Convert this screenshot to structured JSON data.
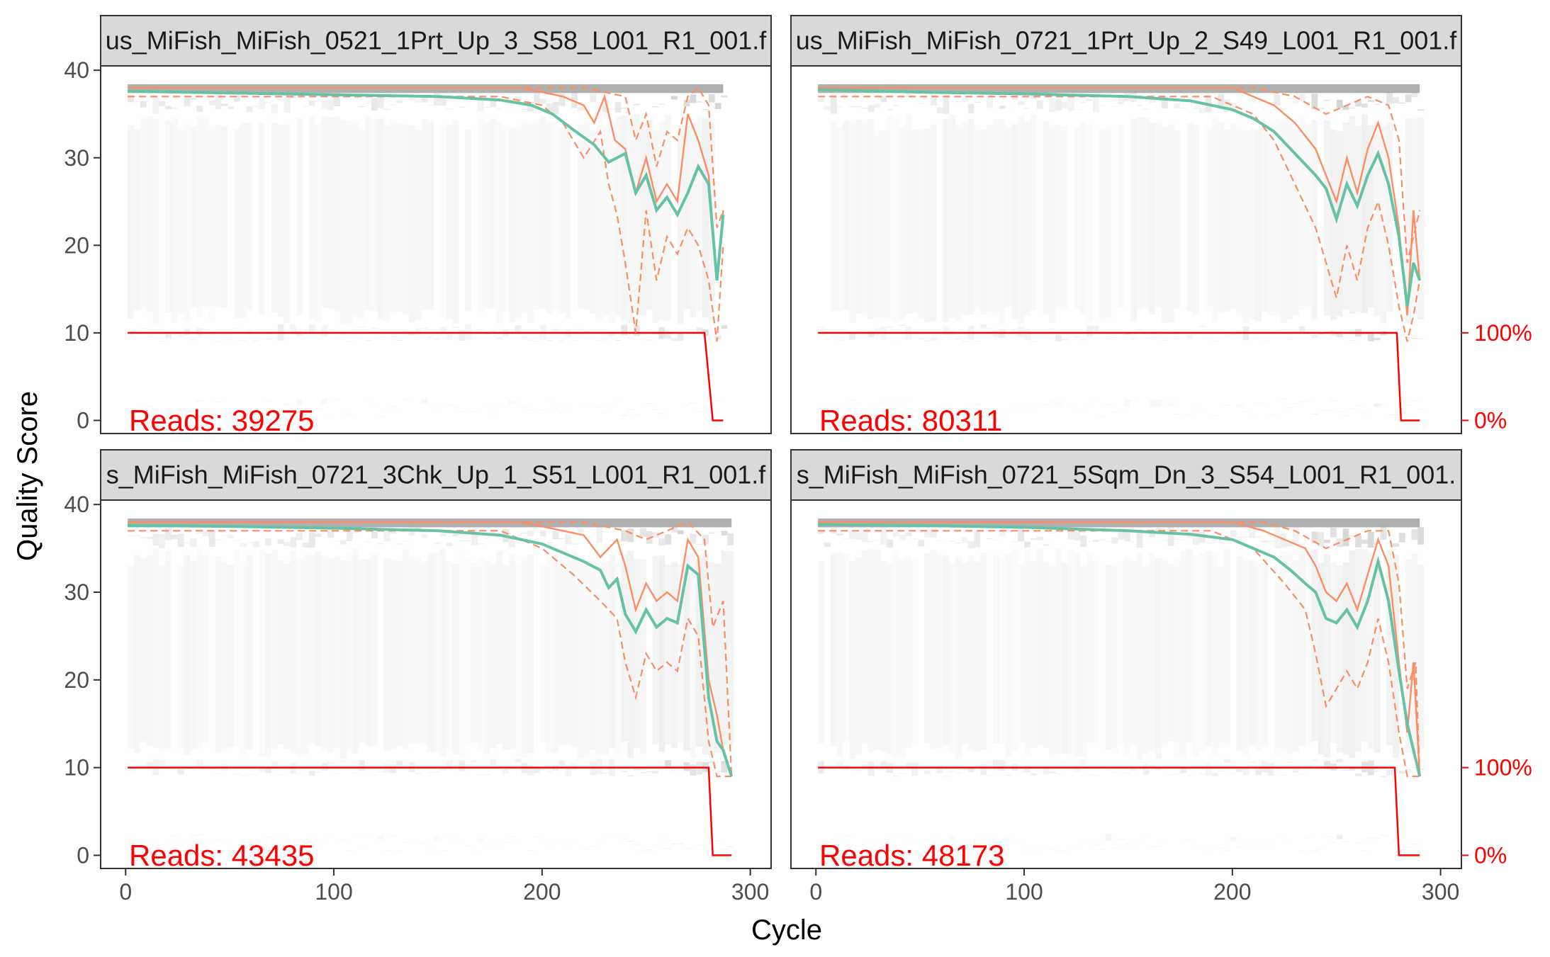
{
  "chart_data": {
    "type": "line",
    "xlabel": "Cycle",
    "ylabel": "Quality Score",
    "xlim": [
      -12,
      310
    ],
    "ylim": [
      -1.5,
      40.5
    ],
    "x_ticks": [
      0,
      100,
      200,
      300
    ],
    "y_ticks": [
      0,
      10,
      20,
      30,
      40
    ],
    "right_axis_labels": [
      "100%",
      "0%"
    ],
    "grid": false,
    "colors": {
      "mean": "#66c2a5",
      "quantiles": "#fc8d62",
      "reads": "#ff0000",
      "heatmap": "#bdbdbd",
      "strip": "#d9d9d9"
    },
    "panels": [
      {
        "strip_label": "us_MiFish_MiFish_0521_1Prt_Up_3_S58_L001_R1_001.f",
        "reads_label": "Reads:  39275",
        "read_length": 287,
        "mean": [
          [
            1,
            37.6
          ],
          [
            50,
            37.4
          ],
          [
            100,
            37.2
          ],
          [
            150,
            37.0
          ],
          [
            180,
            36.6
          ],
          [
            195,
            36.0
          ],
          [
            205,
            35.0
          ],
          [
            215,
            33.2
          ],
          [
            225,
            31.5
          ],
          [
            232,
            29.5
          ],
          [
            240,
            30.5
          ],
          [
            245,
            26.0
          ],
          [
            250,
            28.0
          ],
          [
            255,
            24.0
          ],
          [
            260,
            25.5
          ],
          [
            265,
            23.5
          ],
          [
            270,
            26.0
          ],
          [
            275,
            29.0
          ],
          [
            280,
            27.0
          ],
          [
            284,
            16.0
          ],
          [
            287,
            23.5
          ]
        ],
        "median": [
          [
            1,
            38.0
          ],
          [
            190,
            38.0
          ],
          [
            200,
            37.5
          ],
          [
            210,
            37.0
          ],
          [
            220,
            36.0
          ],
          [
            225,
            34.0
          ],
          [
            230,
            37.0
          ],
          [
            235,
            32.0
          ],
          [
            240,
            31.0
          ],
          [
            245,
            26.0
          ],
          [
            250,
            30.0
          ],
          [
            255,
            25.0
          ],
          [
            260,
            27.0
          ],
          [
            265,
            25.0
          ],
          [
            270,
            35.0
          ],
          [
            275,
            32.0
          ],
          [
            280,
            28.0
          ],
          [
            284,
            16.0
          ],
          [
            287,
            24.0
          ]
        ],
        "q25": [
          [
            1,
            37.0
          ],
          [
            180,
            37.0
          ],
          [
            200,
            36.0
          ],
          [
            210,
            34.0
          ],
          [
            220,
            30.0
          ],
          [
            228,
            33.0
          ],
          [
            232,
            27.0
          ],
          [
            236,
            23.5
          ],
          [
            240,
            18.0
          ],
          [
            245,
            10.0
          ],
          [
            250,
            24.0
          ],
          [
            255,
            16.0
          ],
          [
            260,
            21.0
          ],
          [
            265,
            19.0
          ],
          [
            270,
            22.0
          ],
          [
            275,
            20.0
          ],
          [
            280,
            16.0
          ],
          [
            284,
            9.0
          ],
          [
            287,
            20.0
          ]
        ],
        "q75": [
          [
            1,
            38.0
          ],
          [
            200,
            38.0
          ],
          [
            220,
            38.0
          ],
          [
            240,
            37.0
          ],
          [
            245,
            32.0
          ],
          [
            250,
            35.0
          ],
          [
            255,
            29.0
          ],
          [
            260,
            33.0
          ],
          [
            265,
            32.0
          ],
          [
            270,
            37.0
          ],
          [
            275,
            38.0
          ],
          [
            280,
            36.0
          ],
          [
            284,
            22.0
          ],
          [
            287,
            24.0
          ]
        ],
        "reads_line": [
          [
            1,
            10.0
          ],
          [
            278,
            10.0
          ],
          [
            282,
            0.0
          ],
          [
            287,
            0.0
          ]
        ]
      },
      {
        "strip_label": "us_MiFish_MiFish_0721_1Prt_Up_2_S49_L001_R1_001.f",
        "reads_label": "Reads:  80311",
        "read_length": 290,
        "mean": [
          [
            1,
            37.8
          ],
          [
            50,
            37.5
          ],
          [
            100,
            37.3
          ],
          [
            150,
            37.0
          ],
          [
            180,
            36.5
          ],
          [
            200,
            35.5
          ],
          [
            210,
            34.5
          ],
          [
            220,
            33.0
          ],
          [
            230,
            30.5
          ],
          [
            240,
            28.0
          ],
          [
            245,
            26.5
          ],
          [
            250,
            23.0
          ],
          [
            255,
            27.0
          ],
          [
            260,
            24.5
          ],
          [
            265,
            28.0
          ],
          [
            270,
            30.5
          ],
          [
            275,
            27.0
          ],
          [
            280,
            21.0
          ],
          [
            284,
            13.0
          ],
          [
            287,
            18.0
          ],
          [
            290,
            16.0
          ]
        ],
        "median": [
          [
            1,
            38.0
          ],
          [
            200,
            38.0
          ],
          [
            210,
            37.0
          ],
          [
            220,
            36.0
          ],
          [
            230,
            34.0
          ],
          [
            240,
            31.0
          ],
          [
            245,
            28.0
          ],
          [
            250,
            25.0
          ],
          [
            255,
            30.0
          ],
          [
            260,
            26.0
          ],
          [
            265,
            31.0
          ],
          [
            270,
            34.0
          ],
          [
            275,
            30.0
          ],
          [
            280,
            22.0
          ],
          [
            284,
            12.0
          ],
          [
            287,
            24.0
          ],
          [
            290,
            16.0
          ]
        ],
        "q25": [
          [
            1,
            37.0
          ],
          [
            190,
            37.0
          ],
          [
            210,
            35.0
          ],
          [
            220,
            32.0
          ],
          [
            230,
            27.0
          ],
          [
            240,
            22.0
          ],
          [
            245,
            18.0
          ],
          [
            250,
            14.0
          ],
          [
            255,
            20.0
          ],
          [
            260,
            16.0
          ],
          [
            265,
            22.0
          ],
          [
            270,
            25.0
          ],
          [
            275,
            20.0
          ],
          [
            280,
            13.0
          ],
          [
            284,
            9.0
          ],
          [
            287,
            12.0
          ],
          [
            290,
            16.0
          ]
        ],
        "q75": [
          [
            1,
            38.0
          ],
          [
            210,
            38.0
          ],
          [
            230,
            37.0
          ],
          [
            245,
            35.0
          ],
          [
            255,
            36.0
          ],
          [
            265,
            37.0
          ],
          [
            275,
            36.0
          ],
          [
            280,
            32.0
          ],
          [
            284,
            18.0
          ],
          [
            290,
            24.0
          ]
        ],
        "reads_line": [
          [
            1,
            10.0
          ],
          [
            279,
            10.0
          ],
          [
            281,
            0.0
          ],
          [
            290,
            0.0
          ]
        ]
      },
      {
        "strip_label": "s_MiFish_MiFish_0721_3Chk_Up_1_S51_L001_R1_001.f",
        "reads_label": "Reads:  43435",
        "read_length": 291,
        "mean": [
          [
            1,
            37.6
          ],
          [
            50,
            37.5
          ],
          [
            100,
            37.3
          ],
          [
            150,
            37.0
          ],
          [
            180,
            36.5
          ],
          [
            200,
            35.5
          ],
          [
            210,
            34.5
          ],
          [
            220,
            33.5
          ],
          [
            228,
            32.5
          ],
          [
            232,
            30.5
          ],
          [
            236,
            31.5
          ],
          [
            240,
            27.5
          ],
          [
            245,
            25.5
          ],
          [
            250,
            28.0
          ],
          [
            255,
            26.0
          ],
          [
            260,
            27.0
          ],
          [
            265,
            26.5
          ],
          [
            270,
            33.0
          ],
          [
            275,
            32.0
          ],
          [
            280,
            18.0
          ],
          [
            284,
            13.0
          ],
          [
            287,
            12.0
          ],
          [
            291,
            9.0
          ]
        ],
        "median": [
          [
            1,
            38.0
          ],
          [
            190,
            38.0
          ],
          [
            210,
            37.0
          ],
          [
            220,
            36.5
          ],
          [
            228,
            34.0
          ],
          [
            236,
            36.0
          ],
          [
            240,
            33.0
          ],
          [
            245,
            28.0
          ],
          [
            250,
            31.0
          ],
          [
            255,
            29.0
          ],
          [
            260,
            30.0
          ],
          [
            265,
            29.0
          ],
          [
            270,
            36.0
          ],
          [
            275,
            34.0
          ],
          [
            280,
            20.0
          ],
          [
            284,
            16.0
          ],
          [
            287,
            12.0
          ],
          [
            291,
            9.0
          ]
        ],
        "q25": [
          [
            1,
            37.0
          ],
          [
            180,
            37.0
          ],
          [
            200,
            35.0
          ],
          [
            215,
            32.0
          ],
          [
            228,
            29.0
          ],
          [
            236,
            27.0
          ],
          [
            240,
            22.0
          ],
          [
            245,
            18.0
          ],
          [
            250,
            23.0
          ],
          [
            255,
            21.0
          ],
          [
            260,
            22.0
          ],
          [
            265,
            21.0
          ],
          [
            270,
            27.0
          ],
          [
            275,
            25.0
          ],
          [
            280,
            13.0
          ],
          [
            284,
            9.0
          ],
          [
            291,
            9.0
          ]
        ],
        "q75": [
          [
            1,
            38.0
          ],
          [
            220,
            38.0
          ],
          [
            240,
            37.0
          ],
          [
            250,
            36.0
          ],
          [
            260,
            37.0
          ],
          [
            270,
            38.0
          ],
          [
            278,
            36.0
          ],
          [
            282,
            26.0
          ],
          [
            287,
            29.0
          ],
          [
            291,
            9.0
          ]
        ],
        "reads_line": [
          [
            1,
            10.0
          ],
          [
            280,
            10.0
          ],
          [
            282,
            0.0
          ],
          [
            291,
            0.0
          ]
        ]
      },
      {
        "strip_label": "s_MiFish_MiFish_0721_5Sqm_Dn_3_S54_L001_R1_001.",
        "reads_label": "Reads:  48173",
        "read_length": 290,
        "mean": [
          [
            1,
            37.7
          ],
          [
            50,
            37.6
          ],
          [
            100,
            37.4
          ],
          [
            150,
            37.0
          ],
          [
            180,
            36.6
          ],
          [
            200,
            36.0
          ],
          [
            210,
            35.0
          ],
          [
            220,
            34.0
          ],
          [
            228,
            32.5
          ],
          [
            235,
            31.0
          ],
          [
            240,
            30.0
          ],
          [
            245,
            27.0
          ],
          [
            250,
            26.5
          ],
          [
            255,
            28.0
          ],
          [
            260,
            26.0
          ],
          [
            265,
            29.0
          ],
          [
            270,
            33.5
          ],
          [
            275,
            29.0
          ],
          [
            280,
            21.0
          ],
          [
            284,
            15.0
          ],
          [
            287,
            12.0
          ],
          [
            290,
            9.0
          ]
        ],
        "median": [
          [
            1,
            38.0
          ],
          [
            200,
            38.0
          ],
          [
            215,
            37.0
          ],
          [
            225,
            36.0
          ],
          [
            235,
            35.0
          ],
          [
            240,
            33.0
          ],
          [
            245,
            30.0
          ],
          [
            250,
            29.0
          ],
          [
            255,
            31.0
          ],
          [
            260,
            28.0
          ],
          [
            265,
            32.0
          ],
          [
            270,
            36.0
          ],
          [
            275,
            33.0
          ],
          [
            280,
            22.0
          ],
          [
            284,
            14.0
          ],
          [
            287,
            22.0
          ],
          [
            290,
            9.0
          ]
        ],
        "q25": [
          [
            1,
            37.0
          ],
          [
            190,
            37.0
          ],
          [
            210,
            35.0
          ],
          [
            225,
            31.0
          ],
          [
            235,
            28.0
          ],
          [
            240,
            23.0
          ],
          [
            245,
            17.0
          ],
          [
            250,
            19.0
          ],
          [
            255,
            21.0
          ],
          [
            260,
            19.0
          ],
          [
            265,
            22.0
          ],
          [
            270,
            27.0
          ],
          [
            275,
            22.0
          ],
          [
            280,
            14.0
          ],
          [
            284,
            9.0
          ],
          [
            290,
            9.0
          ]
        ],
        "q75": [
          [
            1,
            38.0
          ],
          [
            215,
            38.0
          ],
          [
            230,
            37.0
          ],
          [
            245,
            35.0
          ],
          [
            255,
            36.0
          ],
          [
            265,
            37.0
          ],
          [
            275,
            37.0
          ],
          [
            280,
            31.0
          ],
          [
            284,
            19.0
          ],
          [
            288,
            22.0
          ],
          [
            290,
            9.0
          ]
        ],
        "reads_line": [
          [
            1,
            10.0
          ],
          [
            278,
            10.0
          ],
          [
            280,
            0.0
          ],
          [
            290,
            0.0
          ]
        ]
      }
    ]
  }
}
